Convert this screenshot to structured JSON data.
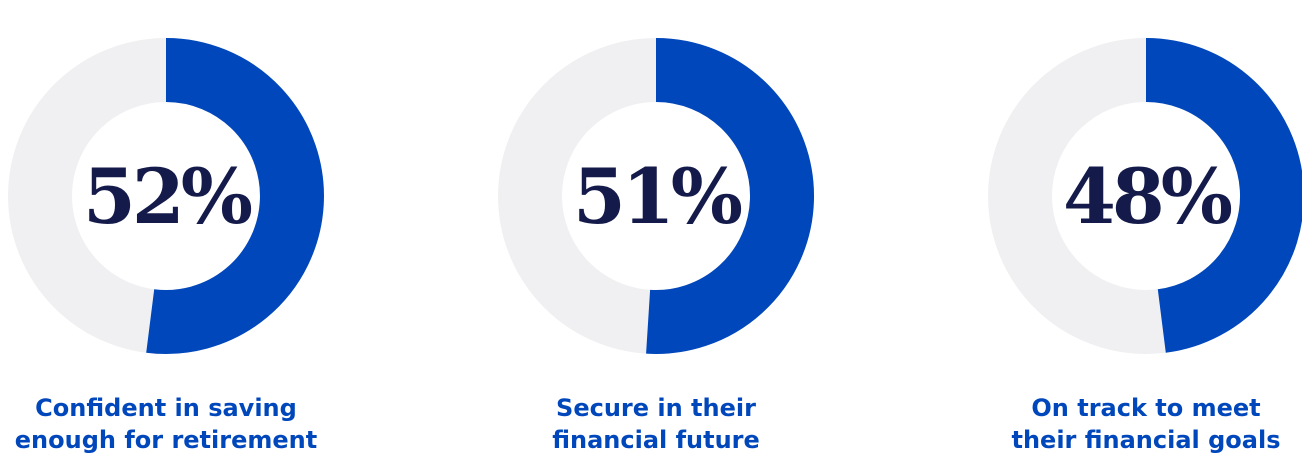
{
  "colors": {
    "accent": "#0047BB",
    "track": "#F0F0F2",
    "value_text": "#141A4A",
    "caption": "#0047BB"
  },
  "chart_data": [
    {
      "type": "pie",
      "style": "donut",
      "value": 52,
      "value_label": "52%",
      "caption_lines": [
        "Confident in saving",
        "enough for retirement"
      ]
    },
    {
      "type": "pie",
      "style": "donut",
      "value": 51,
      "value_label": "51%",
      "caption_lines": [
        "Secure in their",
        "financial future"
      ]
    },
    {
      "type": "pie",
      "style": "donut",
      "value": 48,
      "value_label": "48%",
      "caption_lines": [
        "On track to meet",
        "their financial goals"
      ]
    }
  ]
}
